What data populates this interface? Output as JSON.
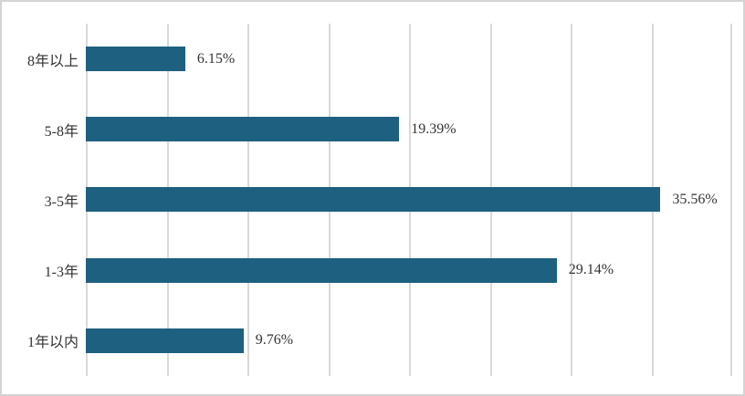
{
  "chart_data": {
    "type": "bar",
    "orientation": "horizontal",
    "title": "",
    "xlabel": "",
    "ylabel": "",
    "categories": [
      "8年以上",
      "5-8年",
      "3-5年",
      "1-3年",
      "1年以内"
    ],
    "values": [
      6.15,
      19.39,
      35.56,
      29.14,
      9.76
    ],
    "value_labels": [
      "6.15%",
      "19.39%",
      "35.56%",
      "29.14%",
      "9.76%"
    ],
    "xlim": [
      0,
      40
    ],
    "gridline_step": 5,
    "grid": true,
    "legend": "none",
    "colors": {
      "bar": "#1e6080",
      "gridline": "#d9d9d9",
      "text": "#333333",
      "border": "#d4d4d4",
      "background": "#ffffff"
    }
  }
}
